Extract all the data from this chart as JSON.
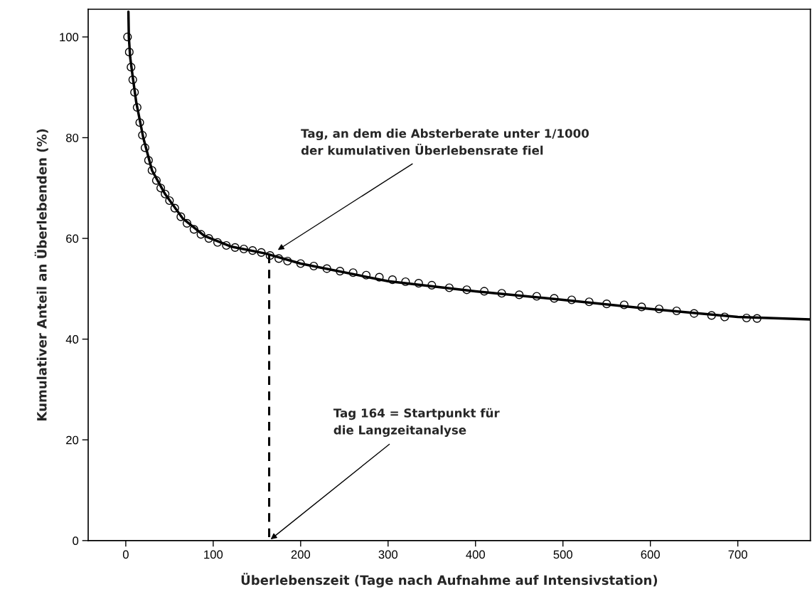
{
  "chart_data": {
    "type": "scatter",
    "xlabel": "Überlebenszeit (Tage nach Aufnahme auf Intensivstation)",
    "ylabel": "Kumulativer Anteil an Überlebenden (%)",
    "xlim": [
      -43,
      783
    ],
    "ylim": [
      0,
      105.5
    ],
    "xticks": [
      0,
      100,
      200,
      300,
      400,
      500,
      600,
      700
    ],
    "yticks": [
      0,
      20,
      40,
      60,
      80,
      100
    ],
    "grid": false,
    "legend": false,
    "series": [
      {
        "color": "#000000",
        "marker": "circle",
        "x": [
          2,
          4,
          6,
          8,
          10,
          13,
          16,
          19,
          22,
          26,
          30,
          35,
          40,
          45,
          50,
          56,
          63,
          70,
          78,
          86,
          95,
          105,
          115,
          125,
          135,
          145,
          155,
          165,
          175,
          185,
          200,
          215,
          230,
          245,
          260,
          275,
          290,
          305,
          320,
          335,
          350,
          370,
          390,
          410,
          430,
          450,
          470,
          490,
          510,
          530,
          550,
          570,
          590,
          610,
          630,
          650,
          670,
          685,
          710,
          722
        ],
        "values": [
          100,
          97,
          94,
          91.5,
          89,
          86,
          83,
          80.5,
          78,
          75.5,
          73.5,
          71.5,
          70,
          68.8,
          67.5,
          66,
          64.3,
          63,
          61.8,
          60.8,
          60,
          59.2,
          58.6,
          58.2,
          57.9,
          57.6,
          57.2,
          56.6,
          56,
          55.5,
          55,
          54.5,
          54,
          53.5,
          53.2,
          52.7,
          52.3,
          51.8,
          51.4,
          51.1,
          50.7,
          50.2,
          49.8,
          49.5,
          49.1,
          48.8,
          48.5,
          48.1,
          47.8,
          47.4,
          47,
          46.8,
          46.4,
          46,
          45.6,
          45.1,
          44.7,
          44.4,
          44.2,
          44.1
        ]
      },
      {
        "type": "line",
        "color": "#000000",
        "marker": "none",
        "line_style": "solid",
        "x": [
          3,
          3.5,
          5,
          8,
          12,
          20,
          30,
          45,
          65,
          90,
          120,
          160,
          200,
          300,
          400,
          500,
          600,
          700,
          783
        ],
        "values": [
          105,
          100,
          96,
          92,
          87,
          80,
          73.5,
          68.8,
          64,
          60.5,
          58.4,
          57,
          55,
          51.5,
          49.5,
          47.8,
          46,
          44.4,
          43.9
        ]
      },
      {
        "type": "line",
        "color": "#000000",
        "marker": "none",
        "line_style": "dashed",
        "x": [
          164,
          164
        ],
        "values": [
          56.8,
          0
        ]
      }
    ],
    "annotations": [
      {
        "text": "Tag, an dem die Absterberate unter 1/1000\nder kumulativen Überlebensrate fiel",
        "x": 172,
        "y": 57.5
      },
      {
        "text": "Tag 164 = Startpunkt für\ndie Langzeitanalyse",
        "x": 164,
        "y": 0
      }
    ]
  }
}
